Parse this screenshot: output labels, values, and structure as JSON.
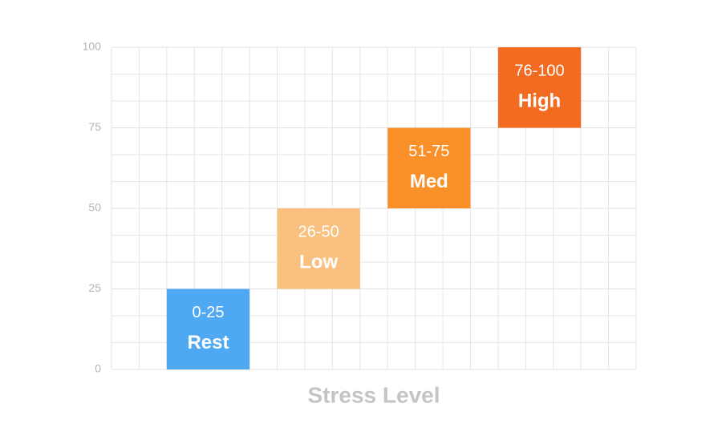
{
  "chart_data": {
    "type": "floating_bar",
    "x_label": "Stress Level",
    "categories": [
      "Rest",
      "Low",
      "Med",
      "High"
    ],
    "range_labels": [
      "0-25",
      "26-50",
      "51-75",
      "76-100"
    ],
    "low": [
      0,
      25,
      50,
      75
    ],
    "high": [
      25,
      50,
      75,
      100
    ],
    "colors": [
      "#4ea8f2",
      "#f9c07f",
      "#f9902a",
      "#f26b21"
    ],
    "ylim": [
      0,
      100
    ],
    "yticks": [
      0,
      25,
      50,
      75,
      100
    ],
    "grid": true
  }
}
